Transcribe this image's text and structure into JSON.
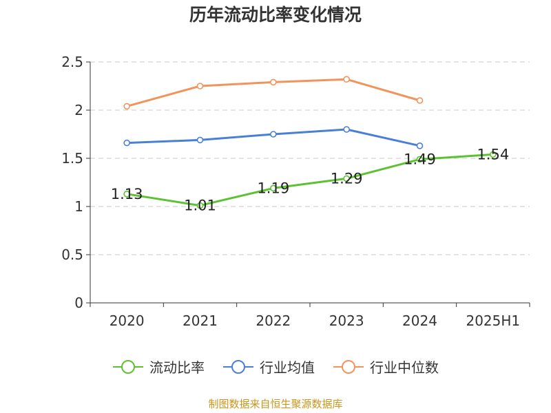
{
  "chart_data": {
    "type": "line",
    "title": "历年流动比率变化情况",
    "categories": [
      "2020",
      "2021",
      "2022",
      "2023",
      "2024",
      "2025H1"
    ],
    "ylim": [
      0,
      2.5
    ],
    "yticks": [
      "0",
      "0.5",
      "1",
      "1.5",
      "2",
      "2.5"
    ],
    "yticks_values": [
      0,
      0.5,
      1,
      1.5,
      2,
      2.5
    ],
    "grid": "horizontal dashed",
    "legend_position": "bottom",
    "series": [
      {
        "name": "流动比率",
        "color": "#5cc232",
        "values": [
          1.13,
          1.01,
          1.19,
          1.29,
          1.49,
          1.54
        ],
        "labels": [
          "1.13",
          "1.01",
          "1.19",
          "1.29",
          "1.49",
          "1.54"
        ]
      },
      {
        "name": "行业均值",
        "color": "#4a7fd8",
        "values": [
          1.66,
          1.69,
          1.75,
          1.8,
          1.63,
          null
        ]
      },
      {
        "name": "行业中位数",
        "color": "#f2935a",
        "values": [
          2.04,
          2.25,
          2.29,
          2.32,
          2.1,
          null
        ]
      }
    ]
  },
  "footer": {
    "source": "制图数据来自恒生聚源数据库"
  }
}
